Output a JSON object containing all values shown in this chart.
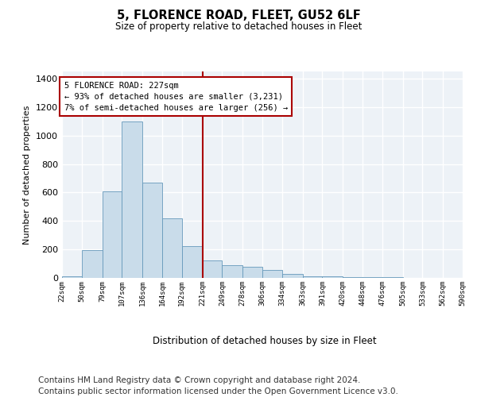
{
  "title": "5, FLORENCE ROAD, FLEET, GU52 6LF",
  "subtitle": "Size of property relative to detached houses in Fleet",
  "xlabel": "Distribution of detached houses by size in Fleet",
  "ylabel": "Number of detached properties",
  "bar_color": "#c9dcea",
  "bar_edge_color": "#6699bb",
  "vline_color": "#aa0000",
  "vline_x": 221,
  "annotation_text": "5 FLORENCE ROAD: 227sqm\n← 93% of detached houses are smaller (3,231)\n7% of semi-detached houses are larger (256) →",
  "annotation_box_color": "#ffffff",
  "annotation_box_edge": "#aa0000",
  "bin_edges": [
    22,
    50,
    79,
    107,
    136,
    164,
    192,
    221,
    249,
    278,
    306,
    334,
    363,
    391,
    420,
    448,
    476,
    505,
    533,
    562,
    590
  ],
  "counts": [
    10,
    195,
    610,
    1100,
    670,
    420,
    225,
    120,
    90,
    80,
    55,
    30,
    10,
    10,
    5,
    5,
    3,
    2,
    2,
    1
  ],
  "ylim": [
    0,
    1450
  ],
  "yticks": [
    0,
    200,
    400,
    600,
    800,
    1000,
    1200,
    1400
  ],
  "bg_color": "#edf2f7",
  "footer": "Contains HM Land Registry data © Crown copyright and database right 2024.\nContains public sector information licensed under the Open Government Licence v3.0.",
  "footer_fontsize": 7.5,
  "fig_width": 6.0,
  "fig_height": 5.0,
  "dpi": 100
}
